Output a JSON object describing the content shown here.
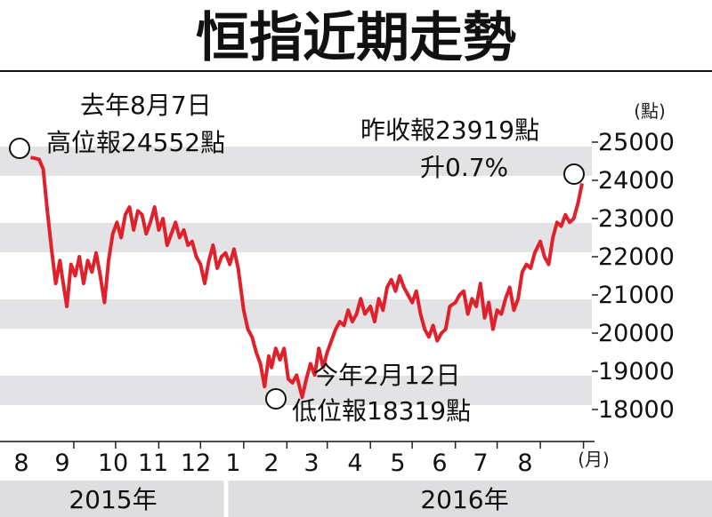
{
  "chart_data": {
    "type": "line",
    "title": "恒指近期走勢",
    "ylabel": "(點)",
    "xlabel": "(月)",
    "ylim": [
      17800,
      25700
    ],
    "y_ticks": [
      "25000",
      "24000",
      "23000",
      "22000",
      "21000",
      "20000",
      "19000",
      "18000"
    ],
    "x_ticks": [
      "8",
      "9",
      "10",
      "11",
      "12",
      "1",
      "2",
      "3",
      "4",
      "5",
      "6",
      "7",
      "8"
    ],
    "years": [
      "2015年",
      "2016年"
    ],
    "series": [
      {
        "color": "#e0202a",
        "x": [
          "2015-08-01",
          "2015-08-07",
          "2015-08-10",
          "2015-08-13",
          "2015-08-16",
          "2015-08-19",
          "2015-08-22",
          "2015-08-24",
          "2015-08-27",
          "2015-08-30",
          "2015-09-02",
          "2015-09-05",
          "2015-09-08",
          "2015-09-11",
          "2015-09-14",
          "2015-09-17",
          "2015-09-20",
          "2015-09-23",
          "2015-09-26",
          "2015-09-29",
          "2015-10-02",
          "2015-10-05",
          "2015-10-08",
          "2015-10-11",
          "2015-10-14",
          "2015-10-17",
          "2015-10-20",
          "2015-10-23",
          "2015-10-26",
          "2015-10-29",
          "2015-11-01",
          "2015-11-04",
          "2015-11-07",
          "2015-11-10",
          "2015-11-13",
          "2015-11-16",
          "2015-11-19",
          "2015-11-22",
          "2015-11-25",
          "2015-11-28",
          "2015-12-01",
          "2015-12-04",
          "2015-12-07",
          "2015-12-10",
          "2015-12-13",
          "2015-12-16",
          "2015-12-19",
          "2015-12-22",
          "2015-12-25",
          "2015-12-28",
          "2016-01-01",
          "2016-01-04",
          "2016-01-07",
          "2016-01-10",
          "2016-01-13",
          "2016-01-16",
          "2016-01-19",
          "2016-01-21",
          "2016-01-24",
          "2016-01-27",
          "2016-01-30",
          "2016-02-02",
          "2016-02-05",
          "2016-02-08",
          "2016-02-12",
          "2016-02-15",
          "2016-02-18",
          "2016-02-21",
          "2016-02-24",
          "2016-02-27",
          "2016-03-01",
          "2016-03-04",
          "2016-03-07",
          "2016-03-10",
          "2016-03-13",
          "2016-03-16",
          "2016-03-19",
          "2016-03-22",
          "2016-03-25",
          "2016-03-28",
          "2016-04-01",
          "2016-04-04",
          "2016-04-07",
          "2016-04-10",
          "2016-04-13",
          "2016-04-16",
          "2016-04-19",
          "2016-04-22",
          "2016-04-25",
          "2016-04-28",
          "2016-05-01",
          "2016-05-04",
          "2016-05-07",
          "2016-05-10",
          "2016-05-13",
          "2016-05-16",
          "2016-05-19",
          "2016-05-22",
          "2016-05-25",
          "2016-05-28",
          "2016-06-01",
          "2016-06-04",
          "2016-06-07",
          "2016-06-10",
          "2016-06-13",
          "2016-06-16",
          "2016-06-19",
          "2016-06-22",
          "2016-06-25",
          "2016-06-28",
          "2016-07-01",
          "2016-07-04",
          "2016-07-07",
          "2016-07-10",
          "2016-07-13",
          "2016-07-16",
          "2016-07-19",
          "2016-07-22",
          "2016-07-25",
          "2016-07-28",
          "2016-08-01",
          "2016-08-04",
          "2016-08-07",
          "2016-08-10",
          "2016-08-13",
          "2016-08-16",
          "2016-08-19",
          "2016-08-22",
          "2016-08-25",
          "2016-08-28",
          "2016-08-31"
        ],
        "y": [
          24600,
          24552,
          24300,
          23200,
          22200,
          21300,
          21900,
          21400,
          20700,
          21800,
          21500,
          22000,
          21300,
          21900,
          21600,
          22100,
          21500,
          20800,
          21900,
          22600,
          22900,
          22500,
          23100,
          23300,
          22700,
          23200,
          23100,
          22600,
          22900,
          23300,
          22700,
          23000,
          22300,
          22600,
          22900,
          22500,
          22700,
          22300,
          22400,
          22000,
          21800,
          21300,
          21900,
          22300,
          21700,
          22000,
          22100,
          21800,
          22200,
          21700,
          20600,
          20100,
          19900,
          19500,
          19200,
          18600,
          19400,
          19100,
          19600,
          19300,
          19600,
          18800,
          18700,
          18900,
          18319,
          18800,
          19200,
          18900,
          19600,
          19100,
          19500,
          19800,
          20100,
          20300,
          20200,
          20600,
          20300,
          20500,
          20900,
          20500,
          20700,
          20300,
          20900,
          20600,
          21200,
          21400,
          21100,
          21500,
          21200,
          21000,
          20800,
          21100,
          20500,
          20100,
          19900,
          20200,
          19800,
          20000,
          20100,
          20700,
          20800,
          21000,
          21100,
          20500,
          20900,
          20700,
          21300,
          20400,
          20800,
          20100,
          20600,
          20500,
          20900,
          21200,
          20600,
          20900,
          21600,
          21800,
          21700,
          22100,
          22400,
          22000,
          21800,
          22500,
          22900,
          22800,
          23100,
          22900,
          23000,
          23400,
          23919
        ]
      }
    ],
    "annotations": [
      {
        "lines": [
          "去年8月7日",
          "高位報24552點"
        ],
        "x": "2015-08-07",
        "y": 24552
      },
      {
        "lines": [
          "今年2月12日",
          "低位報18319點"
        ],
        "x": "2016-02-12",
        "y": 18319
      },
      {
        "lines": [
          "昨收報23919點",
          "升0.7%"
        ],
        "x": "2016-08-31",
        "y": 23919
      }
    ]
  }
}
